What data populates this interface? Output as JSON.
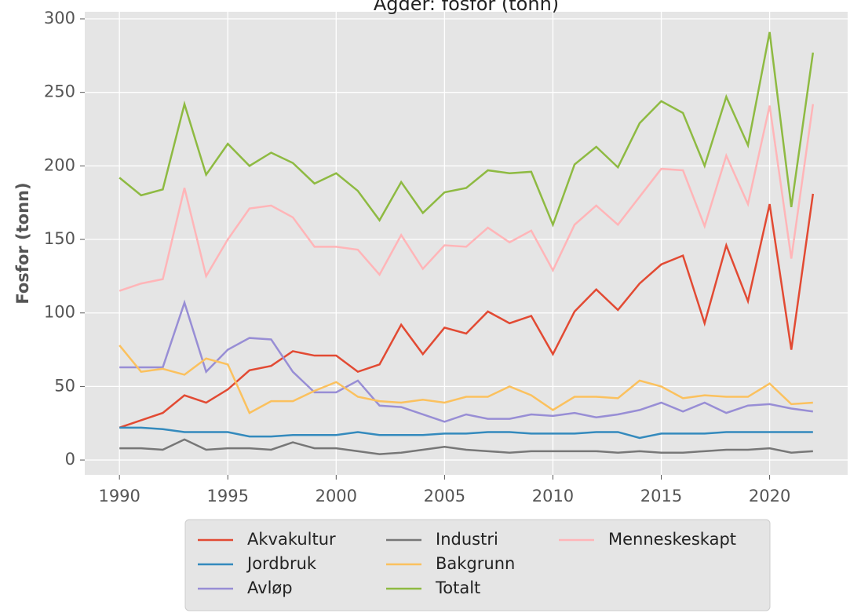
{
  "chart_data": {
    "type": "line",
    "title": "Agder: fosfor (tonn)",
    "ylabel": "Fosfor (tonn)",
    "x": [
      1990,
      1991,
      1992,
      1993,
      1994,
      1995,
      1996,
      1997,
      1998,
      1999,
      2000,
      2001,
      2002,
      2003,
      2004,
      2005,
      2006,
      2007,
      2008,
      2009,
      2010,
      2011,
      2012,
      2013,
      2014,
      2015,
      2016,
      2017,
      2018,
      2019,
      2020,
      2021,
      2022
    ],
    "series": [
      {
        "name": "Akvakultur",
        "color": "#E24A33",
        "values": [
          22,
          27,
          32,
          44,
          39,
          48,
          61,
          64,
          74,
          71,
          71,
          60,
          65,
          92,
          72,
          90,
          86,
          101,
          93,
          98,
          72,
          101,
          116,
          102,
          120,
          133,
          139,
          93,
          146,
          108,
          174,
          75,
          181
        ]
      },
      {
        "name": "Jordbruk",
        "color": "#348ABD",
        "values": [
          22,
          22,
          21,
          19,
          19,
          19,
          16,
          16,
          17,
          17,
          17,
          19,
          17,
          17,
          17,
          18,
          18,
          19,
          19,
          18,
          18,
          18,
          19,
          19,
          15,
          18,
          18,
          18,
          19,
          19,
          19,
          19,
          19
        ]
      },
      {
        "name": "Avløp",
        "color": "#988ED5",
        "values": [
          63,
          63,
          63,
          107,
          60,
          75,
          83,
          82,
          60,
          46,
          46,
          54,
          37,
          36,
          31,
          26,
          31,
          28,
          28,
          31,
          30,
          32,
          29,
          31,
          34,
          39,
          33,
          39,
          32,
          37,
          38,
          35,
          33
        ]
      },
      {
        "name": "Industri",
        "color": "#777777",
        "values": [
          8,
          8,
          7,
          14,
          7,
          8,
          8,
          7,
          12,
          8,
          8,
          6,
          4,
          5,
          7,
          9,
          7,
          6,
          5,
          6,
          6,
          6,
          6,
          5,
          6,
          5,
          5,
          6,
          7,
          7,
          8,
          5,
          6
        ]
      },
      {
        "name": "Bakgrunn",
        "color": "#FBC15E",
        "values": [
          78,
          60,
          62,
          58,
          69,
          65,
          32,
          40,
          40,
          47,
          53,
          43,
          40,
          39,
          41,
          39,
          43,
          43,
          50,
          44,
          34,
          43,
          43,
          42,
          54,
          50,
          42,
          44,
          43,
          43,
          52,
          38,
          39
        ]
      },
      {
        "name": "Totalt",
        "color": "#8EBA42",
        "values": [
          192,
          180,
          184,
          242,
          194,
          215,
          200,
          209,
          202,
          188,
          195,
          183,
          163,
          189,
          168,
          182,
          185,
          197,
          195,
          196,
          160,
          201,
          213,
          199,
          229,
          244,
          236,
          200,
          247,
          214,
          291,
          172,
          277
        ]
      },
      {
        "name": "Menneskeskapt",
        "color": "#FFB5B8",
        "values": [
          115,
          120,
          123,
          185,
          125,
          150,
          171,
          173,
          165,
          145,
          145,
          143,
          126,
          153,
          130,
          146,
          145,
          158,
          148,
          156,
          129,
          160,
          173,
          160,
          179,
          198,
          197,
          159,
          207,
          174,
          241,
          137,
          242
        ]
      }
    ],
    "xlim": [
      1988.4,
      2023.6
    ],
    "xticks": [
      1990,
      1995,
      2000,
      2005,
      2010,
      2015,
      2020
    ],
    "ylim": [
      -10.1,
      304.8
    ],
    "yticks": [
      0,
      50,
      100,
      150,
      200,
      250,
      300
    ],
    "grid": true,
    "legend": "below"
  }
}
